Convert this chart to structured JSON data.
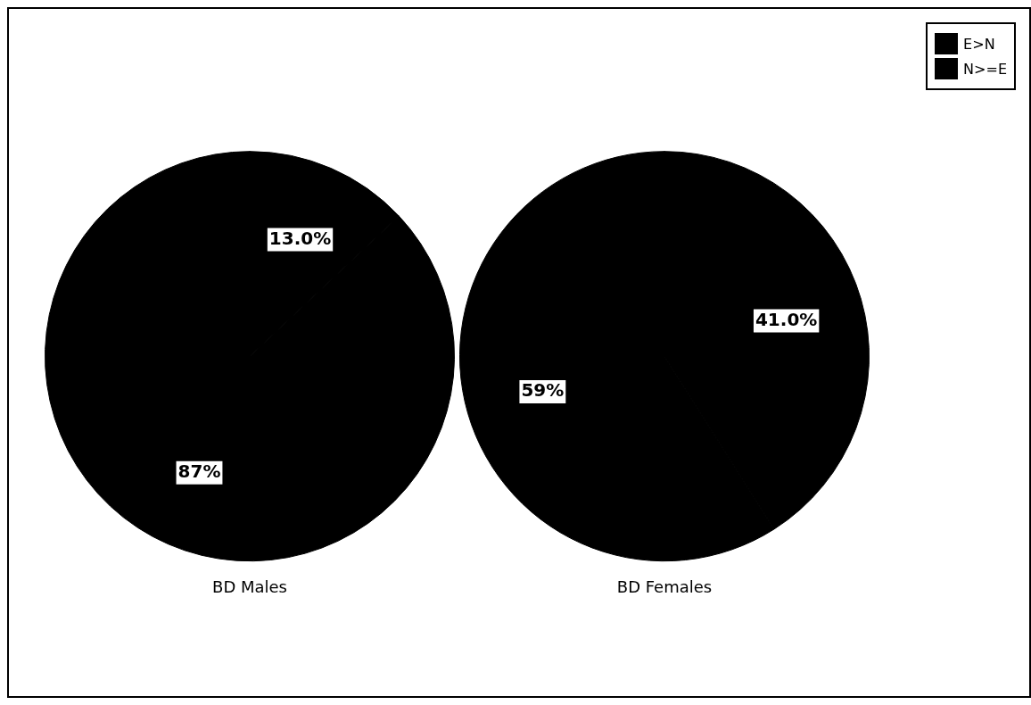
{
  "chart_data": [
    {
      "type": "pie",
      "title": "BD Males",
      "categories": [
        "E>N",
        "N>=E"
      ],
      "values": [
        13.0,
        87
      ],
      "colors": [
        "#000000",
        "#000000"
      ],
      "value_labels": [
        "13.0%",
        "87%"
      ],
      "legend": "top right"
    },
    {
      "type": "pie",
      "title": "BD Females",
      "categories": [
        null,
        null
      ],
      "values": [
        41.0,
        59
      ],
      "colors": [
        "#000000",
        "#000000"
      ],
      "value_labels": [
        "41.0%",
        "59%"
      ],
      "legend": false
    }
  ]
}
